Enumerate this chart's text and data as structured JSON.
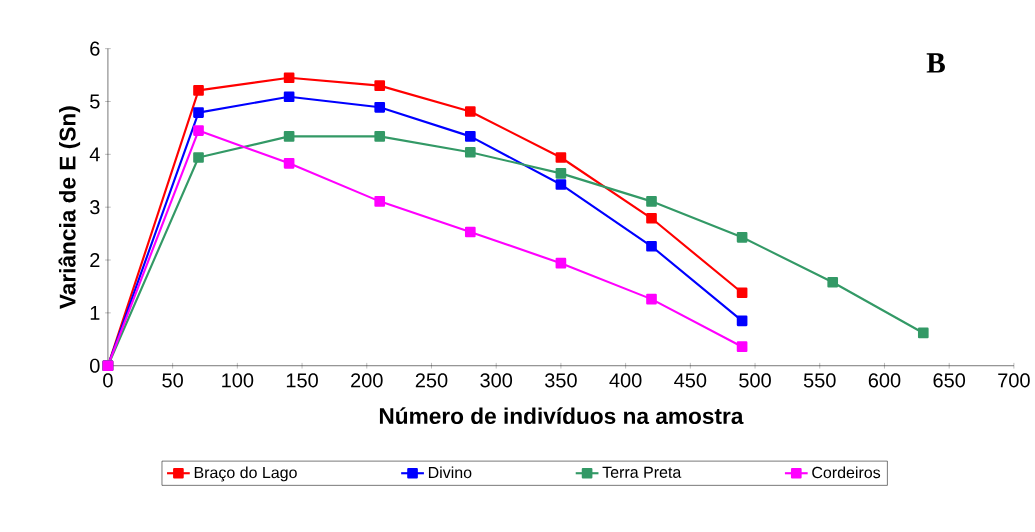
{
  "chart_data": {
    "type": "line",
    "xlabel": "Número de indivíduos na amostra",
    "ylabel": "Variância de E (Sn)",
    "annotations": [
      "B"
    ],
    "xlim": [
      0,
      700
    ],
    "xticks": [
      0,
      50,
      100,
      150,
      200,
      250,
      300,
      350,
      400,
      450,
      500,
      550,
      600,
      650,
      700
    ],
    "ylim": [
      0,
      6
    ],
    "yticks": [
      0,
      1,
      2,
      3,
      4,
      5,
      6
    ],
    "grid": false,
    "legend": "bottom",
    "marker": "square",
    "line_style": "solid",
    "series": [
      {
        "name": "Braço do Lago",
        "color": "#ff0000",
        "x": [
          0,
          70,
          140,
          210,
          280,
          350,
          420,
          490
        ],
        "values": [
          0,
          5.21,
          5.45,
          5.3,
          4.81,
          3.94,
          2.79,
          1.38
        ]
      },
      {
        "name": "Divino",
        "color": "#0000ff",
        "x": [
          0,
          70,
          140,
          210,
          280,
          350,
          420,
          490
        ],
        "values": [
          0,
          4.79,
          5.09,
          4.89,
          4.34,
          3.43,
          2.26,
          0.85
        ]
      },
      {
        "name": "Terra Preta",
        "color": "#339966",
        "x": [
          0,
          70,
          140,
          210,
          280,
          350,
          420,
          490,
          560,
          630
        ],
        "values": [
          0,
          3.94,
          4.34,
          4.34,
          4.04,
          3.64,
          3.11,
          2.43,
          1.58,
          0.62
        ]
      },
      {
        "name": "Cordeiros",
        "color": "#ff00ff",
        "x": [
          0,
          70,
          140,
          210,
          280,
          350,
          420,
          490
        ],
        "values": [
          0,
          4.45,
          3.83,
          3.11,
          2.53,
          1.94,
          1.26,
          0.36
        ]
      }
    ]
  }
}
